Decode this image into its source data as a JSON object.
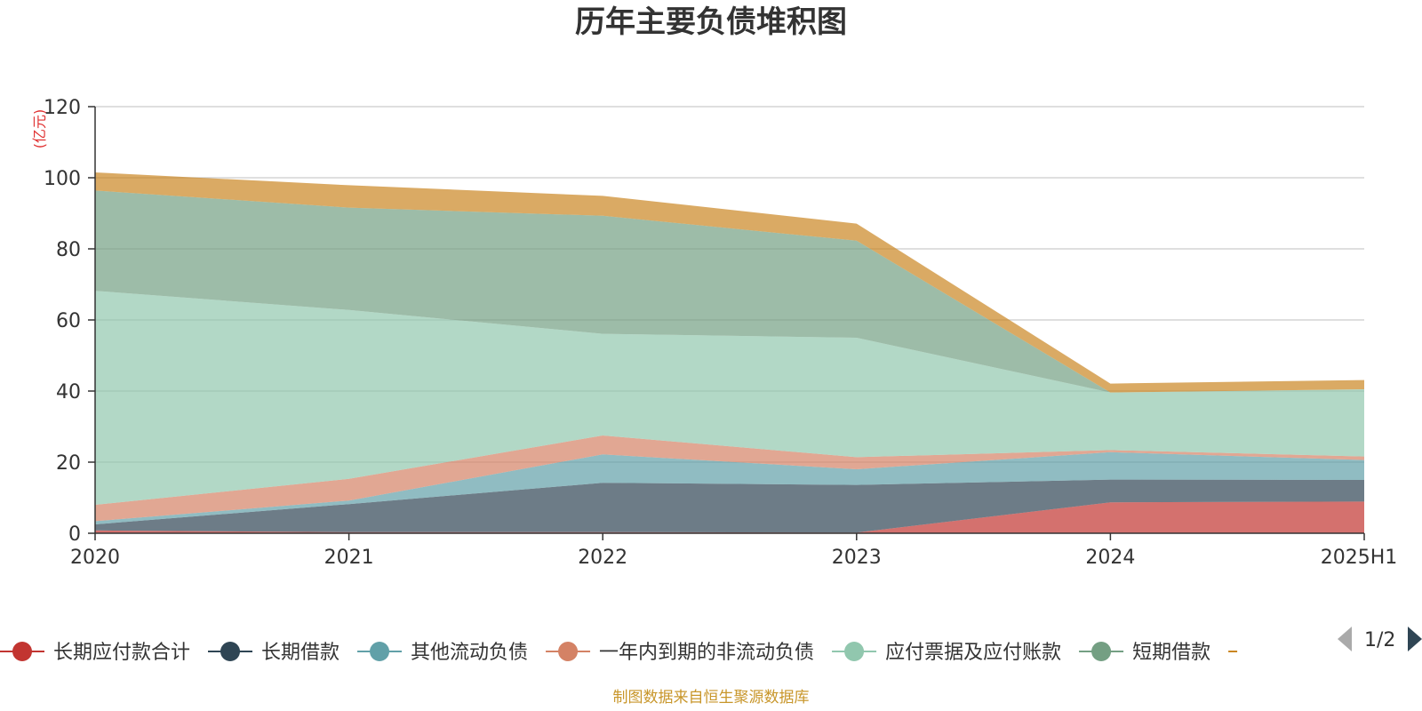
{
  "chart_data": {
    "type": "area",
    "stacked": true,
    "title": "历年主要负债堆积图",
    "unit_label": "(亿元)",
    "categories": [
      "2020",
      "2021",
      "2022",
      "2023",
      "2024",
      "2025H1"
    ],
    "ylim": [
      0,
      120
    ],
    "yticks": [
      0,
      20,
      40,
      60,
      80,
      100,
      120
    ],
    "grid": true,
    "legend_position": "bottom",
    "series": [
      {
        "name": "长期应付款合计",
        "color": "#c23531",
        "values": [
          0.8,
          0.3,
          0.3,
          0.2,
          8.7,
          8.9
        ]
      },
      {
        "name": "长期借款",
        "color": "#2f4554",
        "values": [
          1.7,
          7.9,
          13.9,
          13.4,
          6.4,
          6.1
        ]
      },
      {
        "name": "其他流动负债",
        "color": "#61a0a8",
        "values": [
          0.9,
          1.0,
          8.0,
          4.4,
          7.7,
          5.6
        ]
      },
      {
        "name": "一年内到期的非流动负债",
        "color": "#d48265",
        "values": [
          4.6,
          6.1,
          5.3,
          3.4,
          0.6,
          1.0
        ]
      },
      {
        "name": "应付票据及应付账款",
        "color": "#91c7ae",
        "values": [
          60.2,
          47.5,
          28.6,
          33.6,
          16.2,
          18.9
        ]
      },
      {
        "name": "短期借款",
        "color": "#749f83",
        "values": [
          28.2,
          28.8,
          33.2,
          27.3,
          0.0,
          0.0
        ]
      },
      {
        "name": "",
        "color": "#ca8622",
        "values": [
          5.1,
          6.3,
          5.6,
          4.8,
          2.5,
          2.6
        ]
      }
    ]
  },
  "legend": {
    "visible_items": [
      {
        "name": "长期应付款合计",
        "color": "#c23531"
      },
      {
        "name": "长期借款",
        "color": "#2f4554"
      },
      {
        "name": "其他流动负债",
        "color": "#61a0a8"
      },
      {
        "name": "一年内到期的非流动负债",
        "color": "#d48265"
      },
      {
        "name": "应付票据及应付账款",
        "color": "#91c7ae"
      },
      {
        "name": "短期借款",
        "color": "#749f83"
      }
    ],
    "partial_item_color": "#ca8622",
    "page_indicator": "1/2"
  },
  "source_note": "制图数据来自恒生聚源数据库"
}
